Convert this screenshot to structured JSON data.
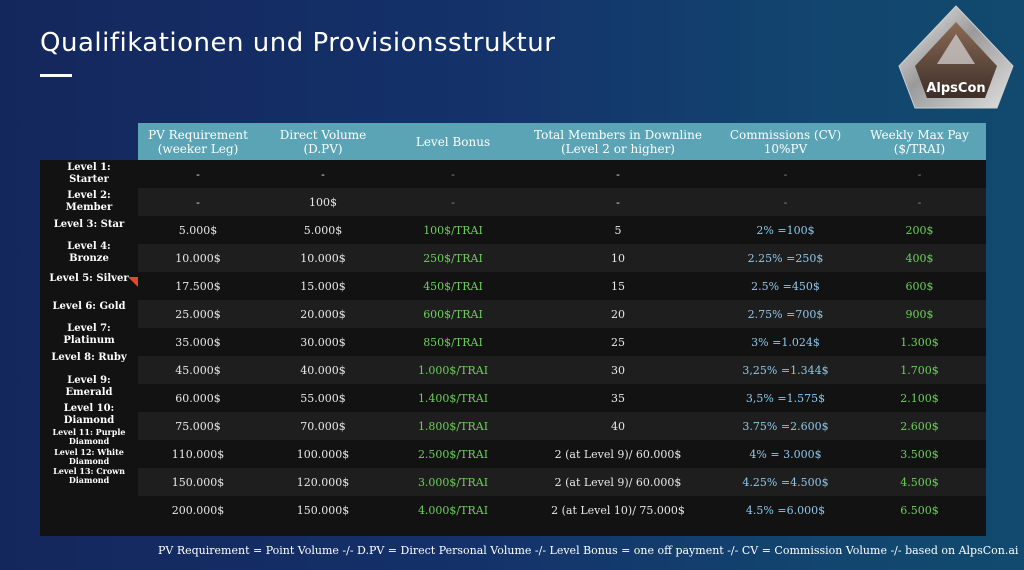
{
  "title": "Qualifikationen und Provisionsstruktur",
  "logo_text": "AlpsCon",
  "headers": [
    "PV Requirement\n(weeker Leg)",
    "Direct Volume\n(D.PV)",
    "Level Bonus",
    "Total Members in Downline\n(Level 2 or higher)",
    "Commissions (CV)\n10%PV",
    "Weekly Max Pay\n($/TRAI)"
  ],
  "levels": [
    "Level 1:\nStarter",
    "Level 2:\nMember",
    "Level 3: Star",
    "Level 4:\nBronze",
    "Level 5: Silver",
    "Level 6: Gold",
    "Level 7:\nPlatinum",
    "Level 8: Ruby",
    "Level 9:\nEmerald",
    "Level 10:\nDiamond",
    "Level 11: Purple\nDiamond",
    "Level 12: White\nDiamond",
    "Level 13: Crown\nDiamond"
  ],
  "rows": [
    [
      "-",
      "-",
      "-",
      "-",
      "-",
      "-"
    ],
    [
      "-",
      "100$",
      "-",
      "-",
      "-",
      "-"
    ],
    [
      "5.000$",
      "5.000$",
      "100$/TRAI",
      "5",
      "2% =100$",
      "200$"
    ],
    [
      "10.000$",
      "10.000$",
      "250$/TRAI",
      "10",
      "2.25% =250$",
      "400$"
    ],
    [
      "17.500$",
      "15.000$",
      "450$/TRAI",
      "15",
      "2.5% =450$",
      "600$"
    ],
    [
      "25.000$",
      "20.000$",
      "600$/TRAI",
      "20",
      "2.75% =700$",
      "900$"
    ],
    [
      "35.000$",
      "30.000$",
      "850$/TRAI",
      "25",
      "3% =1.024$",
      "1.300$"
    ],
    [
      "45.000$",
      "40.000$",
      "1.000$/TRAI",
      "30",
      "3,25% =1.344$",
      "1.700$"
    ],
    [
      "60.000$",
      "55.000$",
      "1.400$/TRAI",
      "35",
      "3,5% =1.575$",
      "2.100$"
    ],
    [
      "75.000$",
      "70.000$",
      "1.800$/TRAI",
      "40",
      "3.75% =2.600$",
      "2.600$"
    ],
    [
      "110.000$",
      "100.000$",
      "2.500$/TRAI",
      "2 (at Level 9)/ 60.000$",
      "4% = 3.000$",
      "3.500$"
    ],
    [
      "150.000$",
      "120.000$",
      "3.000$/TRAI",
      "2 (at Level 9)/ 60.000$",
      "4.25% =4.500$",
      "4.500$"
    ],
    [
      "200.000$",
      "150.000$",
      "4.000$/TRAI",
      "2 (at Level 10)/ 75.000$",
      "4.5% =6.000$",
      "6.500$"
    ]
  ],
  "footer": "PV Requirement = Point Volume -/-  D.PV = Direct Personal Volume -/- Level Bonus = one off payment -/- CV = Commission Volume -/- based on AlpsCon.ai",
  "colors": {
    "header_band": "#5aa4b5",
    "table_bg": "#121212",
    "green_text": "#6ccf5a",
    "blue_text": "#8fc7e8",
    "marker": "#e8452e"
  }
}
